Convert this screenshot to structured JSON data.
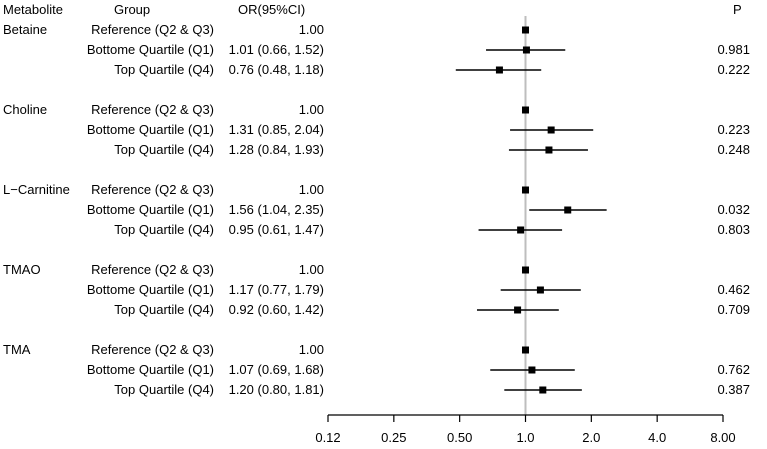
{
  "headers": {
    "metabolite": "Metabolite",
    "group": "Group",
    "or": "OR(95%CI)",
    "p": "P"
  },
  "colors": {
    "reference_line": "#bebebe",
    "marks": "#000000"
  },
  "chart_data": {
    "type": "forest",
    "xscale": "log2",
    "xlim": [
      0.12,
      8.0
    ],
    "xticks": [
      0.12,
      0.25,
      0.5,
      1.0,
      2.0,
      4.0,
      8.0
    ],
    "xtick_labels": [
      "0.12",
      "0.25",
      "0.50",
      "1.0",
      "2.0",
      "4.0",
      "8.00"
    ],
    "reference_value": 1.0,
    "metabolites": [
      {
        "name": "Betaine",
        "rows": [
          {
            "group": "Reference (Q2 & Q3)",
            "or_text": "1.00",
            "or": 1.0,
            "low": null,
            "high": null,
            "p": ""
          },
          {
            "group": "Bottome Quartile (Q1)",
            "or_text": "1.01 (0.66, 1.52)",
            "or": 1.01,
            "low": 0.66,
            "high": 1.52,
            "p": "0.981"
          },
          {
            "group": "Top Quartile (Q4)",
            "or_text": "0.76 (0.48, 1.18)",
            "or": 0.76,
            "low": 0.48,
            "high": 1.18,
            "p": "0.222"
          }
        ]
      },
      {
        "name": "Choline",
        "rows": [
          {
            "group": "Reference (Q2 & Q3)",
            "or_text": "1.00",
            "or": 1.0,
            "low": null,
            "high": null,
            "p": ""
          },
          {
            "group": "Bottome Quartile (Q1)",
            "or_text": "1.31 (0.85, 2.04)",
            "or": 1.31,
            "low": 0.85,
            "high": 2.04,
            "p": "0.223"
          },
          {
            "group": "Top Quartile (Q4)",
            "or_text": "1.28 (0.84, 1.93)",
            "or": 1.28,
            "low": 0.84,
            "high": 1.93,
            "p": "0.248"
          }
        ]
      },
      {
        "name": "L−Carnitine",
        "rows": [
          {
            "group": "Reference (Q2 & Q3)",
            "or_text": "1.00",
            "or": 1.0,
            "low": null,
            "high": null,
            "p": ""
          },
          {
            "group": "Bottome Quartile (Q1)",
            "or_text": "1.56 (1.04, 2.35)",
            "or": 1.56,
            "low": 1.04,
            "high": 2.35,
            "p": "0.032"
          },
          {
            "group": "Top Quartile (Q4)",
            "or_text": "0.95 (0.61, 1.47)",
            "or": 0.95,
            "low": 0.61,
            "high": 1.47,
            "p": "0.803"
          }
        ]
      },
      {
        "name": "TMAO",
        "rows": [
          {
            "group": "Reference (Q2 & Q3)",
            "or_text": "1.00",
            "or": 1.0,
            "low": null,
            "high": null,
            "p": ""
          },
          {
            "group": "Bottome Quartile (Q1)",
            "or_text": "1.17 (0.77, 1.79)",
            "or": 1.17,
            "low": 0.77,
            "high": 1.79,
            "p": "0.462"
          },
          {
            "group": "Top Quartile (Q4)",
            "or_text": "0.92 (0.60, 1.42)",
            "or": 0.92,
            "low": 0.6,
            "high": 1.42,
            "p": "0.709"
          }
        ]
      },
      {
        "name": "TMA",
        "rows": [
          {
            "group": "Reference (Q2 & Q3)",
            "or_text": "1.00",
            "or": 1.0,
            "low": null,
            "high": null,
            "p": ""
          },
          {
            "group": "Bottome Quartile (Q1)",
            "or_text": "1.07 (0.69, 1.68)",
            "or": 1.07,
            "low": 0.69,
            "high": 1.68,
            "p": "0.762"
          },
          {
            "group": "Top Quartile (Q4)",
            "or_text": "1.20 (0.80, 1.81)",
            "or": 1.2,
            "low": 0.8,
            "high": 1.81,
            "p": "0.387"
          }
        ]
      }
    ]
  }
}
